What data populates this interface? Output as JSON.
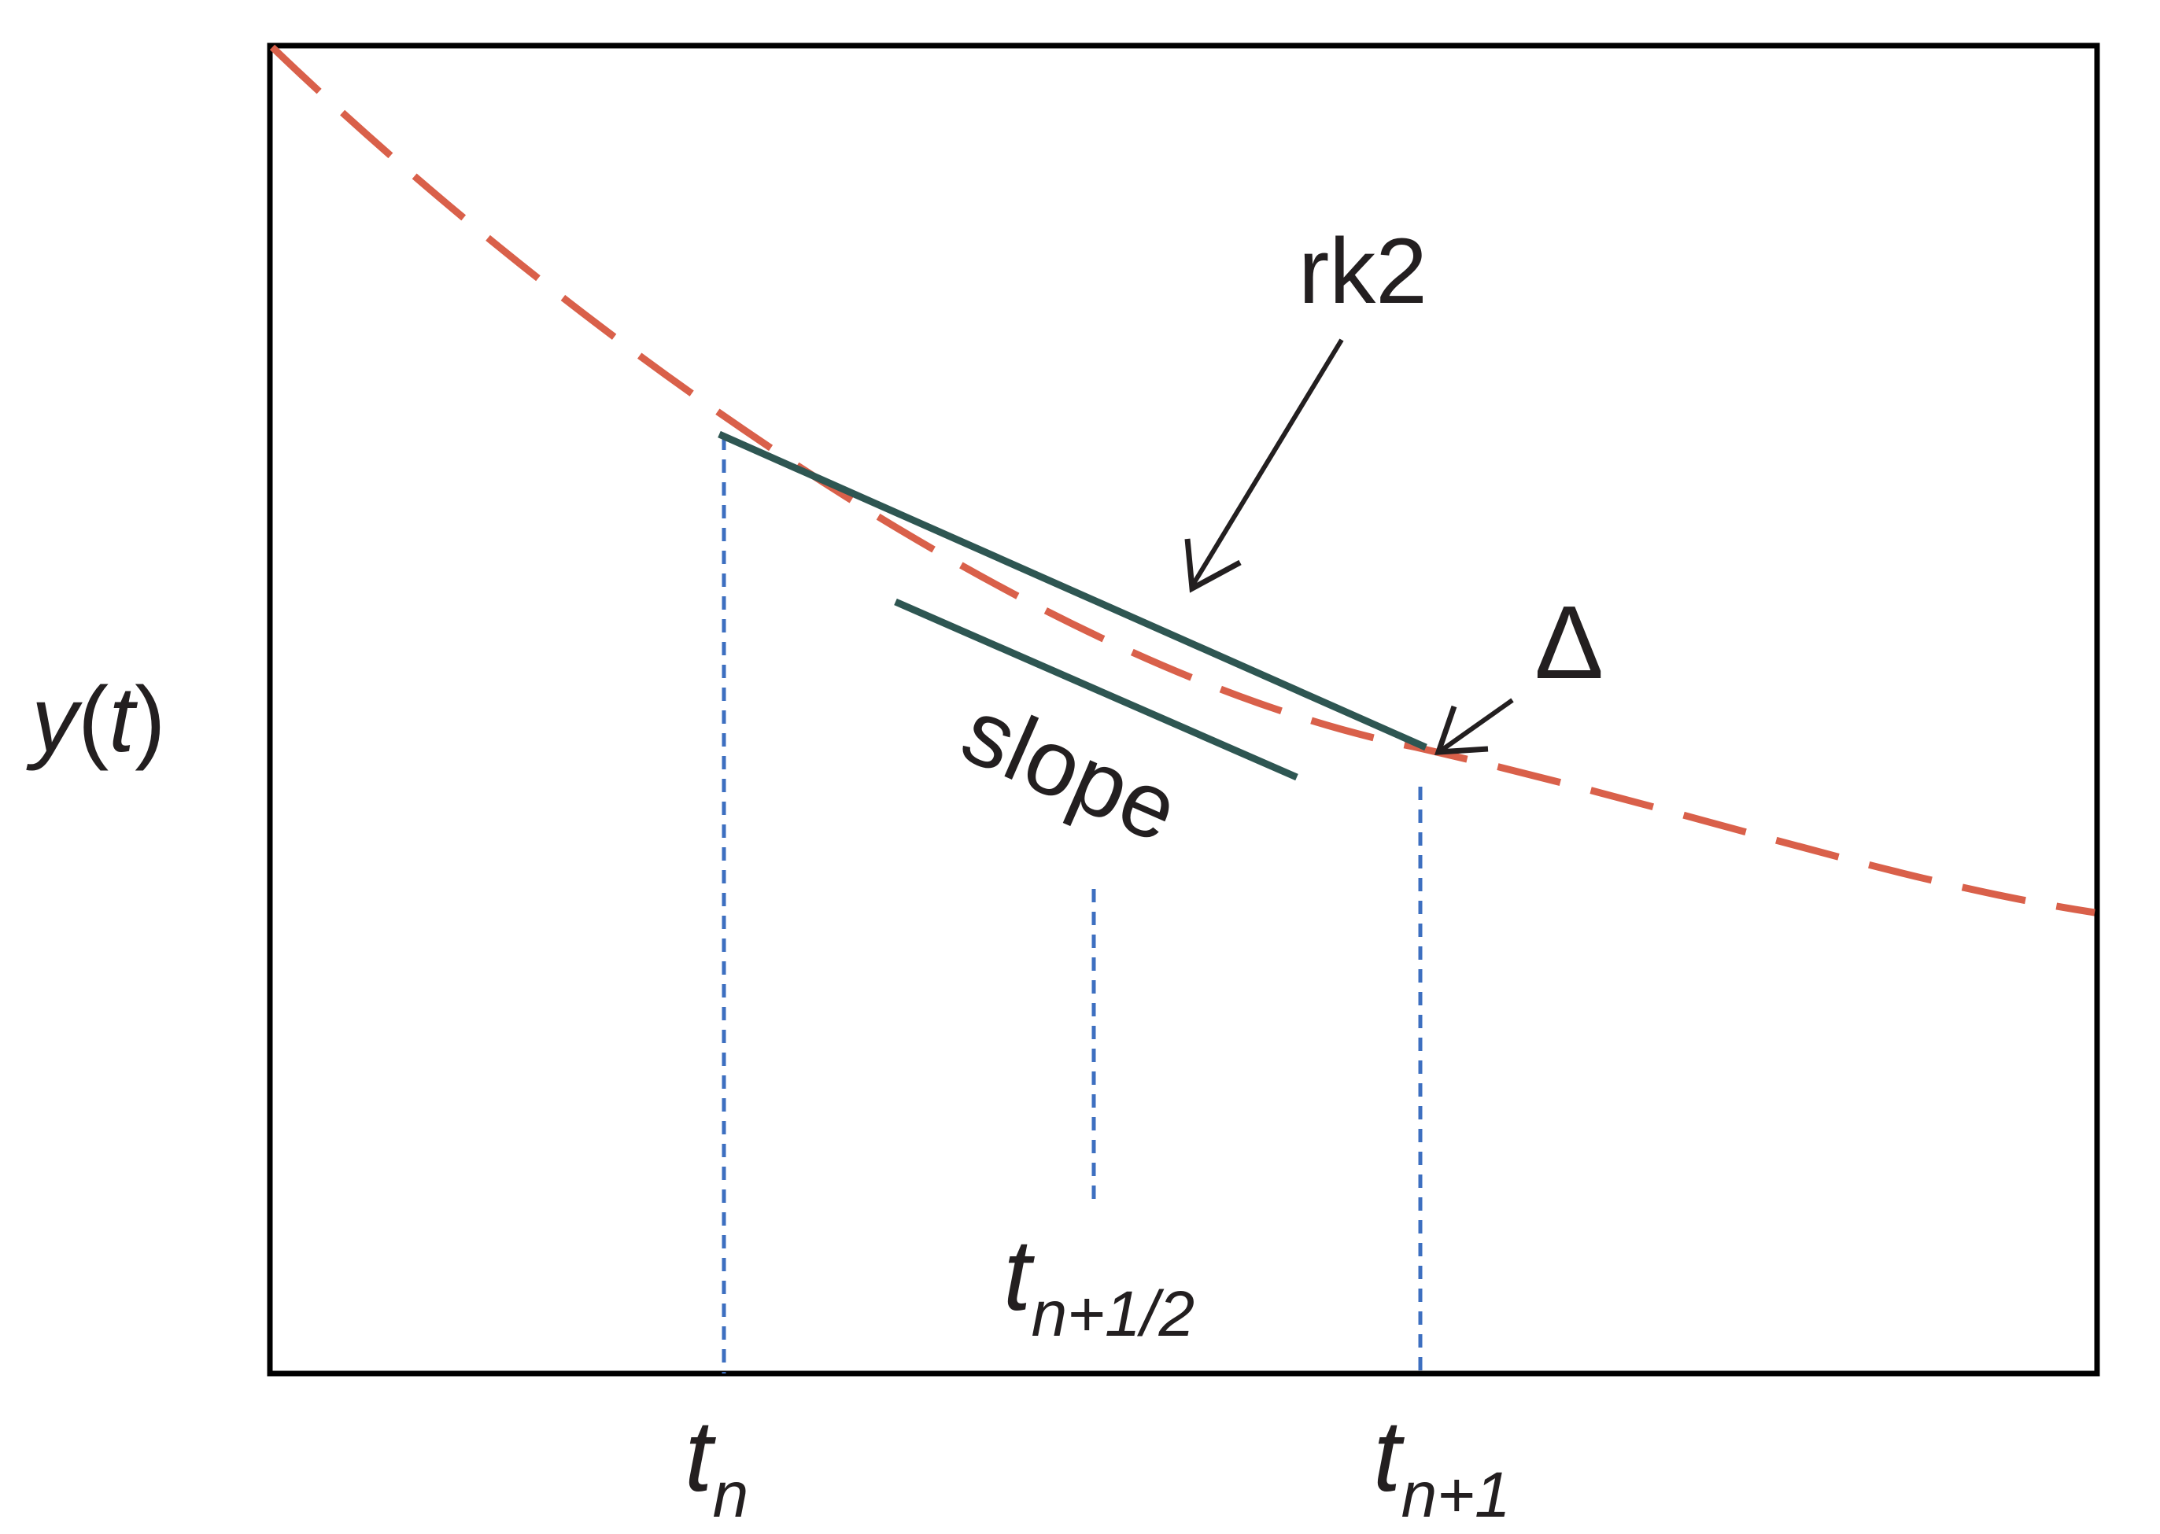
{
  "labels": {
    "y_axis_var": "y",
    "y_axis_arg": "t",
    "rk2": "rk2",
    "delta": "Δ",
    "slope": "slope",
    "t": "t",
    "sub_n": "n",
    "sub_n_half": "n+1/2",
    "sub_n_plus_1": "n+1"
  },
  "colors": {
    "curve": "#d9604a",
    "tangent": "#2e5652",
    "guide": "#3d6fc0",
    "frame": "#000000",
    "arrow": "#231f20"
  }
}
